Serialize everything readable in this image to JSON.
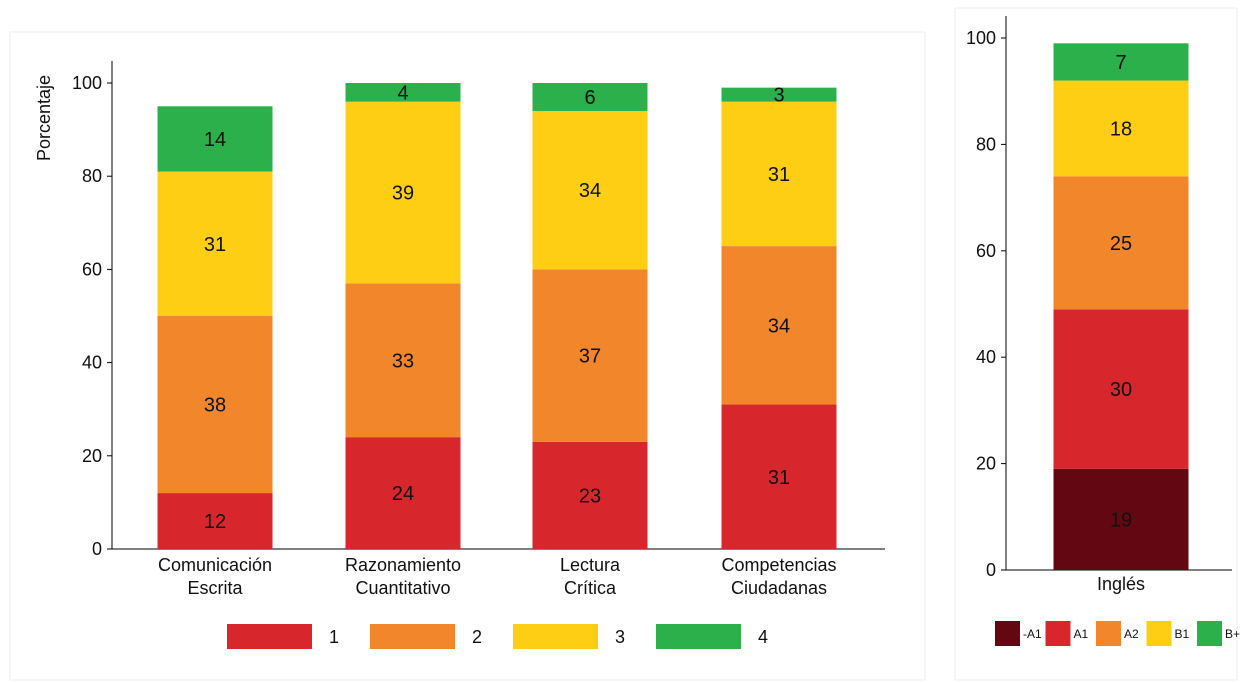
{
  "chart_data": [
    {
      "type": "bar",
      "stacked": true,
      "ylabel": "Porcentaje",
      "ylim": [
        0,
        100
      ],
      "yticks": [
        0,
        20,
        40,
        60,
        80,
        100
      ],
      "categories": [
        [
          "Comunicación",
          "Escrita"
        ],
        [
          "Razonamiento",
          "Cuantitativo"
        ],
        [
          "Lectura",
          "Crítica"
        ],
        [
          "Competencias",
          "Ciudadanas"
        ]
      ],
      "series": [
        {
          "name": "1",
          "color": "#d7262c",
          "values": [
            12,
            24,
            23,
            31
          ]
        },
        {
          "name": "2",
          "color": "#f2862b",
          "values": [
            38,
            33,
            37,
            34
          ]
        },
        {
          "name": "3",
          "color": "#fdce14",
          "values": [
            31,
            39,
            34,
            31
          ]
        },
        {
          "name": "4",
          "color": "#2bb04b",
          "values": [
            14,
            4,
            6,
            3
          ]
        }
      ],
      "legend_position": "bottom"
    },
    {
      "type": "bar",
      "stacked": true,
      "ylim": [
        0,
        100
      ],
      "yticks": [
        0,
        20,
        40,
        60,
        80,
        100
      ],
      "categories": [
        [
          "Inglés"
        ]
      ],
      "series": [
        {
          "name": "-A1",
          "color": "#630812",
          "values": [
            19
          ]
        },
        {
          "name": "A1",
          "color": "#d7262c",
          "values": [
            30
          ]
        },
        {
          "name": "A2",
          "color": "#f2862b",
          "values": [
            25
          ]
        },
        {
          "name": "B1",
          "color": "#fdce14",
          "values": [
            18
          ]
        },
        {
          "name": "B+",
          "color": "#2bb04b",
          "values": [
            7
          ]
        }
      ],
      "legend_position": "bottom"
    }
  ]
}
